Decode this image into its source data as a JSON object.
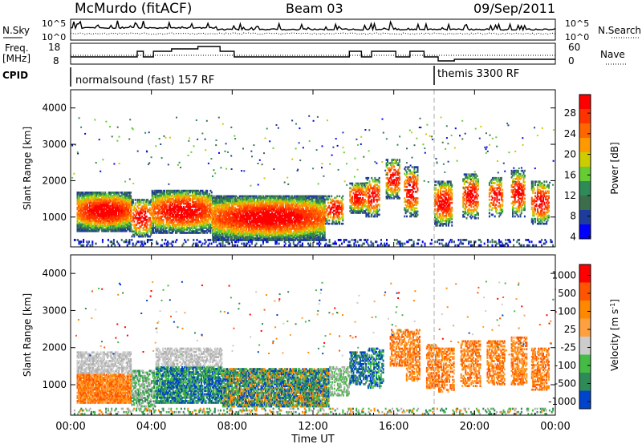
{
  "header": {
    "station": "McMurdo (fitACF)",
    "beam": "Beam 03",
    "date": "09/Sep/2011"
  },
  "panels": {
    "nsky_label": "N.Sky",
    "nsearch_label": "N.Search",
    "freq_label_1": "Freq.",
    "freq_label_2": "[MHz]",
    "nave_label": "Nave",
    "cpid_label": "CPID",
    "cpid_mode_1": "normalsound (fast) 157 RF",
    "cpid_mode_2": "themis 3300 RF",
    "noise_ticks_left": [
      "10^5",
      "10^0"
    ],
    "noise_ticks_right": [
      "10^5",
      "10^0"
    ],
    "freq_ticks": [
      "18",
      "8"
    ],
    "nave_ticks": [
      "60",
      "0"
    ]
  },
  "colors": {
    "power_scale": [
      "#0000ff",
      "#1e3c9b",
      "#3c6e4b",
      "#2e8b57",
      "#66cc33",
      "#cccc00",
      "#ff9900",
      "#ff6600",
      "#ff3300",
      "#ff0000"
    ],
    "velocity_scale": [
      "#0044cc",
      "#2e8b57",
      "#44bb44",
      "#cccccc",
      "#ffa040",
      "#ff8800",
      "#ff5500",
      "#ff0000"
    ],
    "ground_scatter": "#b0b0b0"
  },
  "chart_data": [
    {
      "type": "heatmap",
      "name": "power",
      "xlabel": "",
      "ylabel": "Slant Range [km]",
      "xlim": [
        "00:00",
        "24:00"
      ],
      "ylim": [
        180,
        4500
      ],
      "yticks": [
        "1000",
        "2000",
        "3000",
        "4000"
      ],
      "colorbar": {
        "label": "Power [dB]",
        "ticks": [
          "28",
          "24",
          "20",
          "16",
          "12",
          "8",
          "4"
        ]
      }
    },
    {
      "type": "heatmap",
      "name": "velocity",
      "xlabel": "Time UT",
      "ylabel": "Slant Range [km]",
      "xlim": [
        "00:00",
        "24:00"
      ],
      "ylim": [
        180,
        4500
      ],
      "xticks": [
        "00:00",
        "04:00",
        "08:00",
        "12:00",
        "16:00",
        "20:00",
        "00:00"
      ],
      "yticks": [
        "1000",
        "2000",
        "3000",
        "4000"
      ],
      "colorbar": {
        "label": "Velocity [m s",
        "label_sup": "-1",
        "label_end": "]",
        "ticks": [
          "1000",
          "500",
          "100",
          "25",
          "-25",
          "-100",
          "-500",
          "-1000"
        ]
      }
    }
  ]
}
